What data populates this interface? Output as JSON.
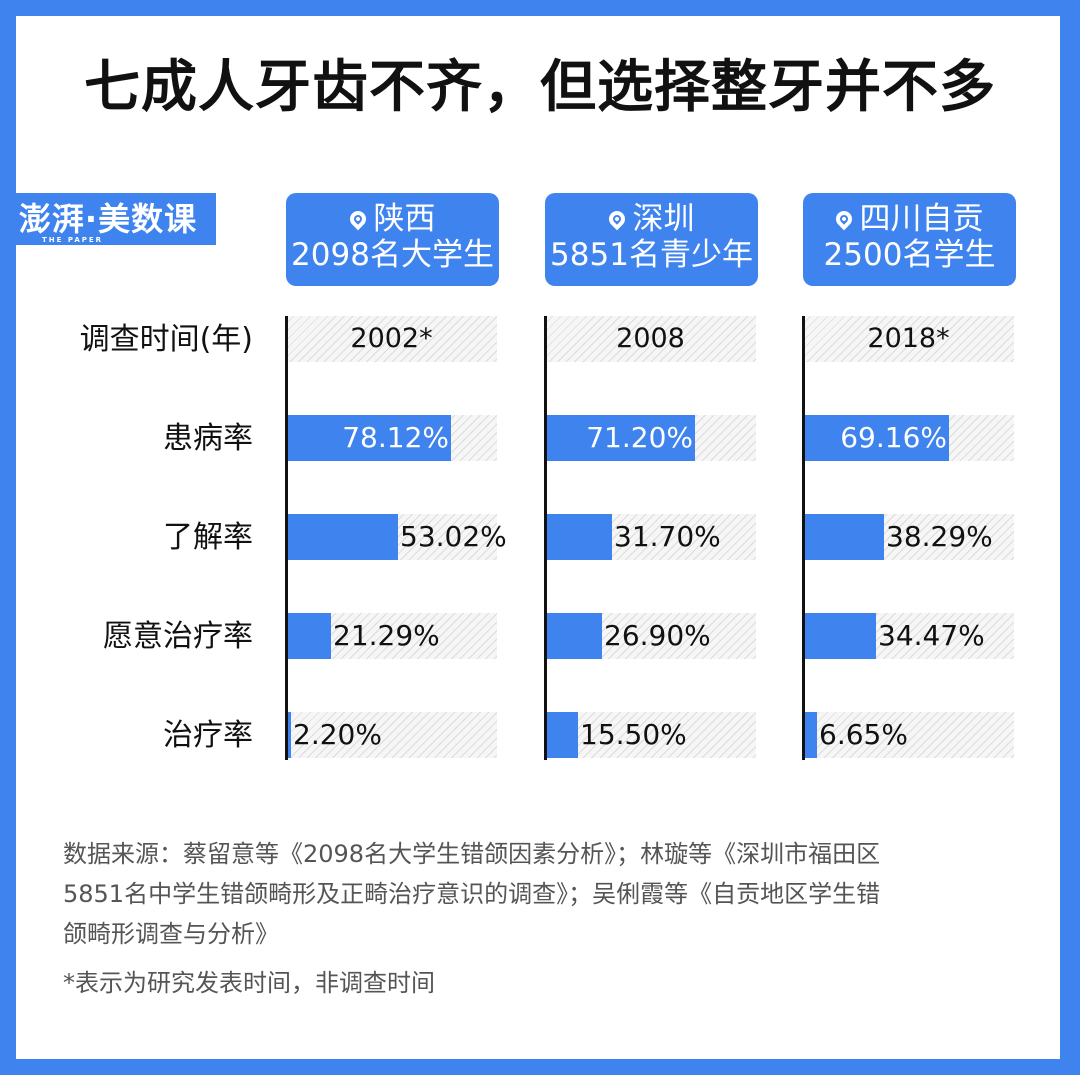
{
  "title": "七成人牙齿不齐，但选择整牙并不多",
  "logo": {
    "text": "澎湃·美数课",
    "sub": "THE PAPER"
  },
  "colors": {
    "accent": "#3f83ee",
    "track": "#dcdcdc",
    "text": "#111111"
  },
  "row_labels": {
    "year": "调查时间(年)",
    "prevalence": "患病率",
    "awareness": "了解率",
    "willingness": "愿意治疗率",
    "treatment": "治疗率"
  },
  "regions": [
    {
      "icon": "location-pin-icon",
      "place": "陕西",
      "sample": "2098名大学生",
      "year": "2002*"
    },
    {
      "icon": "location-pin-icon",
      "place": "深圳",
      "sample": "5851名青少年",
      "year": "2008"
    },
    {
      "icon": "location-pin-icon",
      "place": "四川自贡",
      "sample": "2500名学生",
      "year": "2018*"
    }
  ],
  "chart_data": {
    "type": "bar",
    "orientation": "horizontal",
    "title": "七成人牙齿不齐，但选择整牙并不多",
    "categories": [
      "患病率",
      "了解率",
      "愿意治疗率",
      "治疗率"
    ],
    "xlim": [
      0,
      100
    ],
    "series": [
      {
        "name": "陕西",
        "year": "2002*",
        "values": [
          78.12,
          53.02,
          21.29,
          2.2
        ],
        "labels": [
          "78.12%",
          "53.02%",
          "21.29%",
          "2.20%"
        ]
      },
      {
        "name": "深圳",
        "year": "2008",
        "values": [
          71.2,
          31.7,
          26.9,
          15.5
        ],
        "labels": [
          "71.20%",
          "31.70%",
          "26.90%",
          "15.50%"
        ]
      },
      {
        "name": "四川自贡",
        "year": "2018*",
        "values": [
          69.16,
          38.29,
          34.47,
          6.65
        ],
        "labels": [
          "69.16%",
          "38.29%",
          "34.47%",
          "6.65%"
        ]
      }
    ]
  },
  "source": {
    "lines": [
      "数据来源：蔡留意等《2098名大学生错颌因素分析》；林璇等《深圳市福田区",
      "5851名中学生错颌畸形及正畸治疗意识的调查》；吴俐霞等《自贡地区学生错",
      "颌畸形调查与分析》"
    ],
    "note": "*表示为研究发表时间，非调查时间"
  }
}
